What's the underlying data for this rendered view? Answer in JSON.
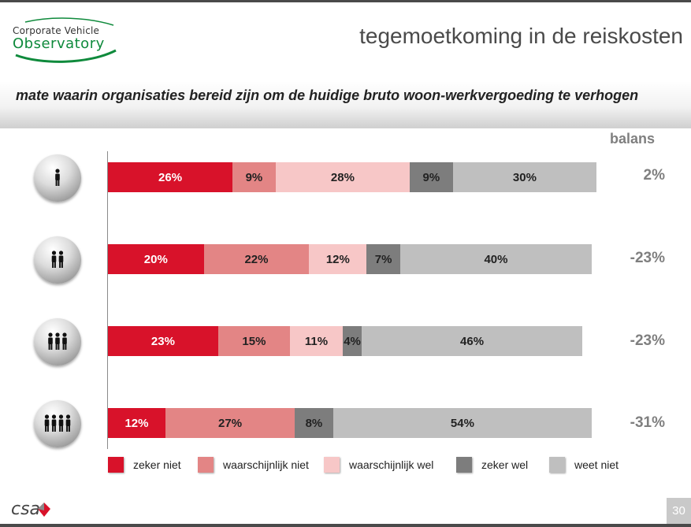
{
  "header": {
    "logo_line1": "Corporate Vehicle",
    "logo_line2": "Observatory",
    "title": "tegemoetkoming in de reiskosten"
  },
  "subtitle": "mate waarin organisaties bereid zijn om de huidige bruto woon-werkvergoeding te verhogen",
  "balans_label": "balans",
  "footer": {
    "brand": "csa",
    "page_number": "30"
  },
  "colors": {
    "zeker_niet": "#d8122a",
    "waarschijnlijk_niet": "#e38585",
    "waarschijnlijk_wel": "#f7c7c7",
    "zeker_wel": "#7d7d7d",
    "weet_niet": "#bfbfbf"
  },
  "chart_data": {
    "type": "bar",
    "orientation": "horizontal",
    "stacked": true,
    "percent": true,
    "categories": [
      "1 person icon",
      "2 persons icon",
      "3 persons icon",
      "4 persons icon"
    ],
    "series": [
      {
        "name": "zeker niet",
        "color": "#d8122a",
        "values": [
          26,
          20,
          23,
          12
        ],
        "labels": [
          "26%",
          "20%",
          "23%",
          "12%"
        ]
      },
      {
        "name": "waarschijnlijk niet",
        "color": "#e38585",
        "values": [
          9,
          22,
          15,
          27
        ],
        "labels": [
          "9%",
          "22%",
          "15%",
          "27%"
        ]
      },
      {
        "name": "waarschijnlijk wel",
        "color": "#f7c7c7",
        "values": [
          28,
          12,
          11,
          0
        ],
        "labels": [
          "28%",
          "12%",
          "11%",
          ""
        ]
      },
      {
        "name": "zeker wel",
        "color": "#7d7d7d",
        "values": [
          9,
          7,
          4,
          8
        ],
        "labels": [
          "9%",
          "7%",
          "4%",
          "8%"
        ]
      },
      {
        "name": "weet niet",
        "color": "#bfbfbf",
        "values": [
          30,
          40,
          46,
          54
        ],
        "labels": [
          "30%",
          "40%",
          "46%",
          "54%"
        ]
      }
    ],
    "balans": [
      "2%",
      "-23%",
      "-23%",
      "-31%"
    ],
    "legend_position": "bottom",
    "grid": false
  }
}
